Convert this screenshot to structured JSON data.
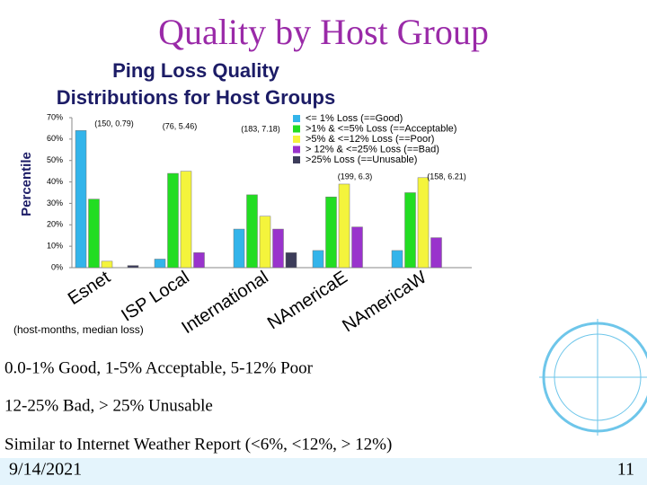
{
  "slide": {
    "title": "Quality by Host Group",
    "notes": [
      "0.0-1% Good, 1-5% Acceptable, 5-12% Poor",
      "12-25% Bad, > 25% Unusable",
      "Similar to Internet Weather Report (<6%, <12%, > 12%)"
    ],
    "date": "9/14/2021",
    "page": "11"
  },
  "chart_data": {
    "type": "bar",
    "title": "Ping Loss Quality Distributions for Host Groups",
    "y_label": "Percentile",
    "x_note": "(host-months, median loss)",
    "categories": [
      "Esnet",
      "ISP Local",
      "International",
      "NAmericaE",
      "NAmericaW"
    ],
    "annotations": [
      "(150, 0.79)",
      "(76, 5.46)",
      "(183, 7.18)",
      "(199, 6.3)",
      "(158, 6.21)"
    ],
    "series": [
      {
        "name": "<= 1% Loss (==Good)",
        "color": "#33b4ea",
        "values": [
          64,
          4,
          18,
          8,
          8
        ]
      },
      {
        "name": ">1% & <=5% Loss (==Acceptable)",
        "color": "#22dd22",
        "values": [
          32,
          44,
          34,
          33,
          35
        ]
      },
      {
        "name": ">5% & <=12% Loss (==Poor)",
        "color": "#f4f43c",
        "values": [
          3,
          45,
          24,
          39,
          42
        ]
      },
      {
        "name": "> 12% & <=25% Loss (==Bad)",
        "color": "#9933cc",
        "values": [
          0,
          7,
          18,
          19,
          14
        ]
      },
      {
        "name": ">25% Loss (==Unusable)",
        "color": "#3c3c5a",
        "values": [
          1,
          0,
          7,
          0,
          0
        ]
      }
    ],
    "ylim": [
      0,
      70
    ],
    "yticks": [
      {
        "value": 0,
        "label": "0%"
      },
      {
        "value": 10,
        "label": "10%"
      },
      {
        "value": 20,
        "label": "20%"
      },
      {
        "value": 30,
        "label": "30%"
      },
      {
        "value": 40,
        "label": "40%"
      },
      {
        "value": 50,
        "label": "50%"
      },
      {
        "value": 60,
        "label": "60%"
      },
      {
        "value": 70,
        "label": "70%"
      }
    ]
  }
}
